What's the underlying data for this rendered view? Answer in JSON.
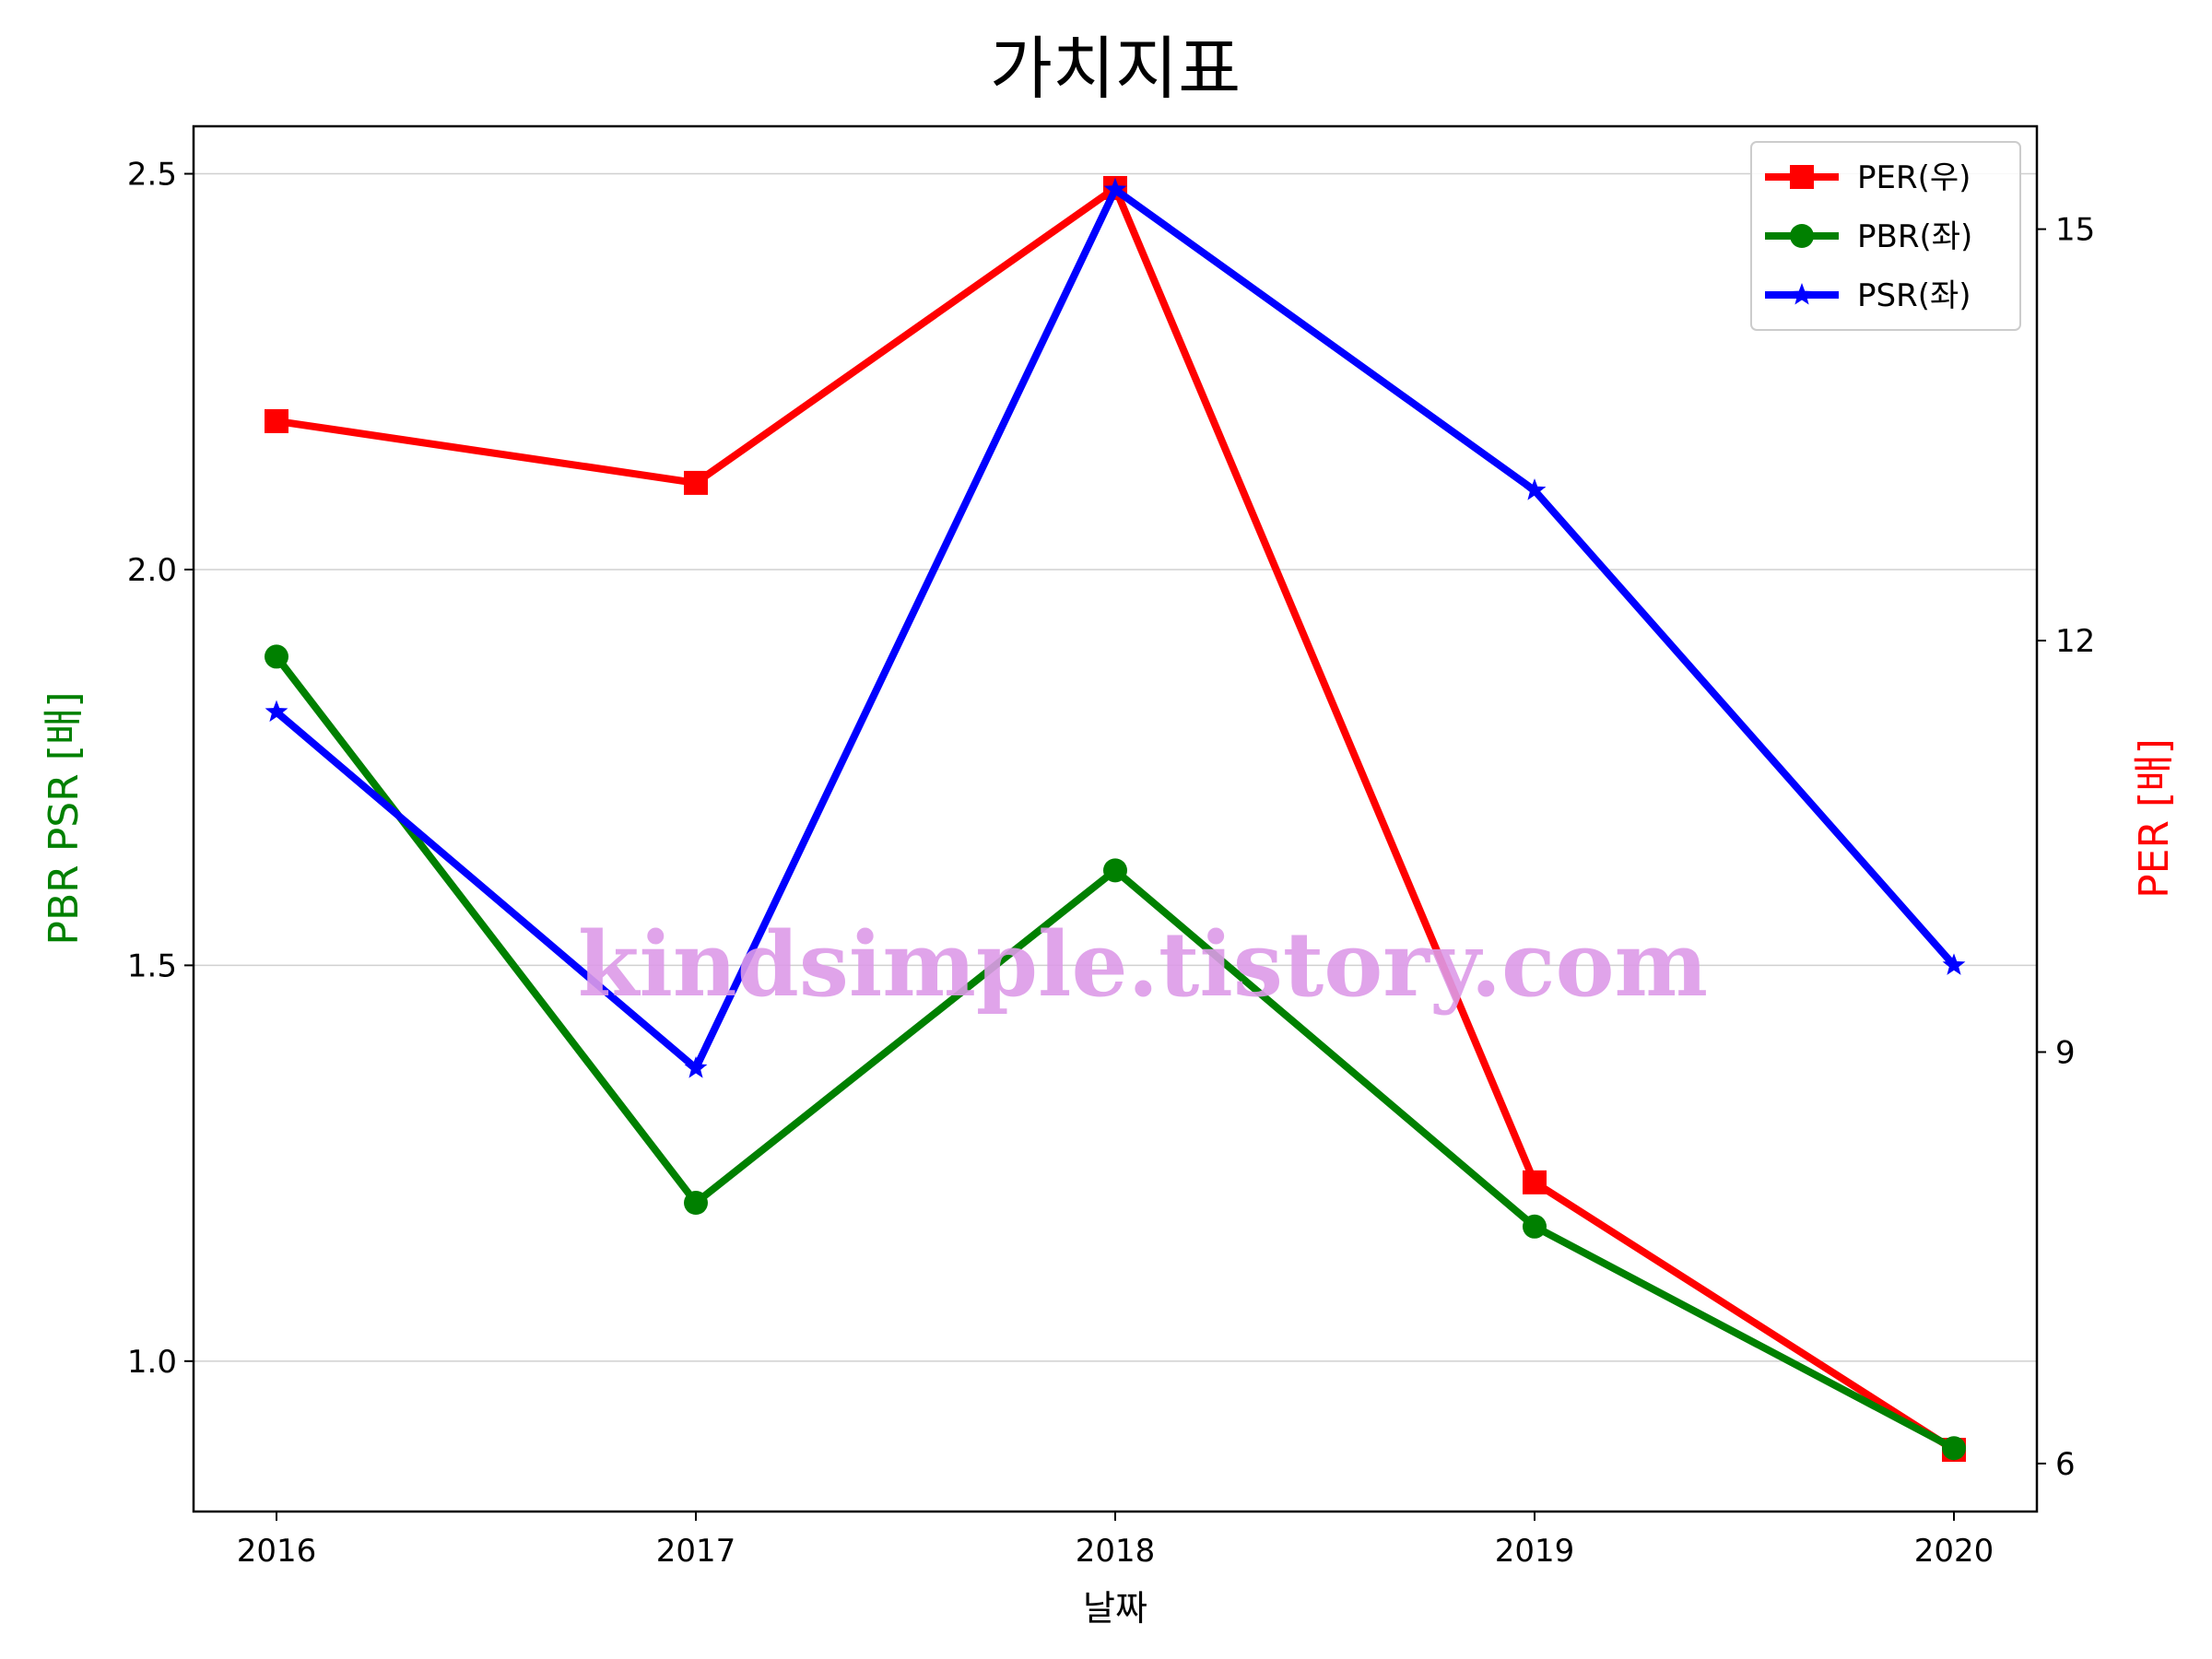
{
  "chart_data": {
    "type": "line",
    "title": "가치지표",
    "xlabel": "날짜",
    "ylabel_left": "PBR PSR [배]",
    "ylabel_right": "PER [배]",
    "ylabel_left_color": "#008000",
    "ylabel_right_color": "#ff0000",
    "categories": [
      "2016",
      "2017",
      "2018",
      "2019",
      "2020"
    ],
    "ylim_left": [
      0.81,
      2.56
    ],
    "ylim_right": [
      5.65,
      15.75
    ],
    "yticks_left": [
      "1.0",
      "1.5",
      "2.0",
      "2.5"
    ],
    "yticks_right": [
      "6",
      "9",
      "12",
      "15"
    ],
    "grid": "horizontal (left axis)",
    "legend_position": "upper right",
    "watermark": "kindsimple.tistory.com",
    "series": [
      {
        "name": "PER(우)",
        "axis": "right",
        "color": "#ff0000",
        "marker": "square",
        "values": [
          13.6,
          13.15,
          15.3,
          8.05,
          6.1
        ]
      },
      {
        "name": "PBR(좌)",
        "axis": "left",
        "color": "#008000",
        "marker": "circle",
        "values": [
          1.89,
          1.2,
          1.62,
          1.17,
          0.89
        ]
      },
      {
        "name": "PSR(좌)",
        "axis": "left",
        "color": "#0000ff",
        "marker": "star",
        "values": [
          1.82,
          1.37,
          2.48,
          2.1,
          1.5
        ]
      }
    ]
  }
}
